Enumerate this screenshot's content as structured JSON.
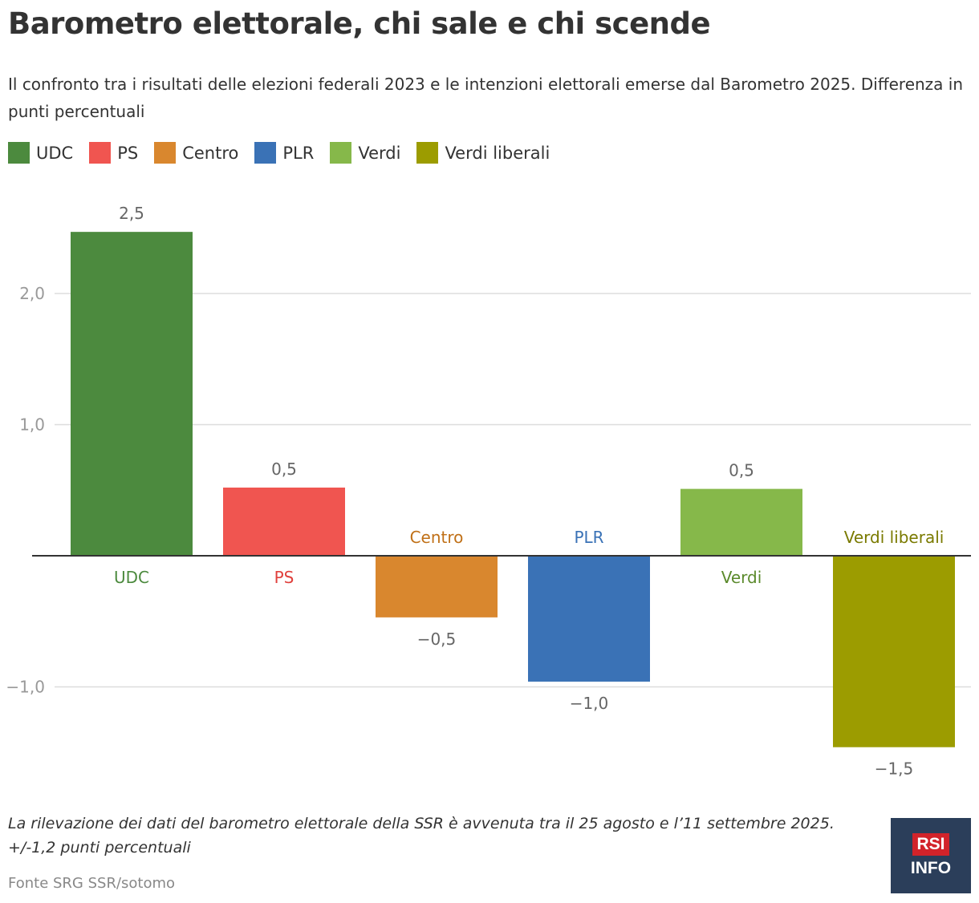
{
  "header": {
    "title": "Barometro elettorale, chi sale e chi scende",
    "subtitle": "Il confronto tra i risultati delle elezioni federali 2023 e le intenzioni elettorali emerse dal Barometro 2025. Differenza in punti percentuali"
  },
  "legend": [
    {
      "label": "UDC",
      "color": "#4c8a3e"
    },
    {
      "label": "PS",
      "color": "#f05550"
    },
    {
      "label": "Centro",
      "color": "#d9872e"
    },
    {
      "label": "PLR",
      "color": "#3a72b6"
    },
    {
      "label": "Verdi",
      "color": "#86b84a"
    },
    {
      "label": "Verdi liberali",
      "color": "#9c9c00"
    }
  ],
  "chart_data": {
    "type": "bar",
    "title": "Barometro elettorale, chi sale e chi scende",
    "xlabel": "",
    "ylabel": "",
    "ylim": [
      -1.55,
      2.5
    ],
    "yticks": [
      2.0,
      1.0,
      -1.0
    ],
    "ytick_labels": [
      "2,0",
      "1,0",
      "−1,0"
    ],
    "categories": [
      "UDC",
      "PS",
      "Centro",
      "PLR",
      "Verdi",
      "Verdi liberali"
    ],
    "values": [
      2.47,
      0.52,
      -0.47,
      -0.96,
      0.51,
      -1.46
    ],
    "value_labels": [
      "2,5",
      "0,5",
      "−0,5",
      "−1,0",
      "0,5",
      "−1,5"
    ],
    "colors": [
      "#4c8a3e",
      "#f05550",
      "#d9872e",
      "#3a72b6",
      "#86b84a",
      "#9c9c00"
    ],
    "label_colors": [
      "#4c8a3e",
      "#e0403c",
      "#c07017",
      "#3a72b6",
      "#5b8a2c",
      "#7a7a00"
    ],
    "grid": true
  },
  "footer": {
    "note": "La rilevazione dei dati del barometro elettorale della SSR è avvenuta tra il 25 agosto e l’11 settembre 2025. +/-1,2 punti percentuali",
    "source": "Fonte SRG SSR/sotomo",
    "logo_top": "RSI",
    "logo_bottom": "INFO"
  }
}
